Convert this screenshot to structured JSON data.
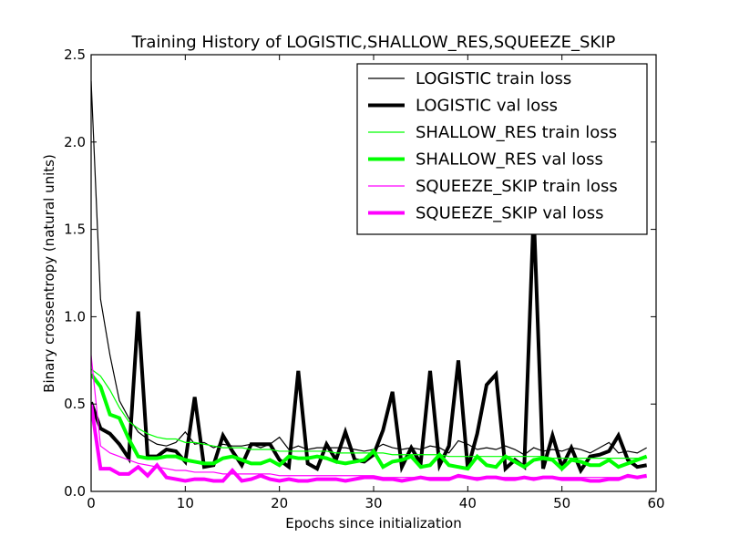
{
  "chart_data": {
    "type": "line",
    "title": "Training History of LOGISTIC,SHALLOW_RES,SQUEEZE_SKIP",
    "xlabel": "Epochs since initialization",
    "ylabel": "Binary crossentropy (natural units)",
    "xlim": [
      0,
      60
    ],
    "ylim": [
      0.0,
      2.5
    ],
    "xticks": [
      "0",
      "10",
      "20",
      "30",
      "40",
      "50",
      "60"
    ],
    "yticks": [
      "0.0",
      "0.5",
      "1.0",
      "1.5",
      "2.0",
      "2.5"
    ],
    "grid": false,
    "legend_position": "top-right",
    "x": [
      0,
      1,
      2,
      3,
      4,
      5,
      6,
      7,
      8,
      9,
      10,
      11,
      12,
      13,
      14,
      15,
      16,
      17,
      18,
      19,
      20,
      21,
      22,
      23,
      24,
      25,
      26,
      27,
      28,
      29,
      30,
      31,
      32,
      33,
      34,
      35,
      36,
      37,
      38,
      39,
      40,
      41,
      42,
      43,
      44,
      45,
      46,
      47,
      48,
      49,
      50,
      51,
      52,
      53,
      54,
      55,
      56,
      57,
      58,
      59
    ],
    "series": [
      {
        "name": "LOGISTIC train loss",
        "color": "#000000",
        "weight": "thin",
        "values": [
          2.35,
          1.1,
          0.78,
          0.52,
          0.42,
          0.34,
          0.3,
          0.27,
          0.26,
          0.28,
          0.34,
          0.27,
          0.28,
          0.25,
          0.27,
          0.26,
          0.26,
          0.27,
          0.25,
          0.27,
          0.31,
          0.24,
          0.26,
          0.24,
          0.25,
          0.25,
          0.25,
          0.25,
          0.24,
          0.23,
          0.24,
          0.27,
          0.25,
          0.24,
          0.25,
          0.24,
          0.26,
          0.25,
          0.22,
          0.29,
          0.27,
          0.24,
          0.25,
          0.24,
          0.26,
          0.24,
          0.21,
          0.25,
          0.23,
          0.24,
          0.23,
          0.25,
          0.24,
          0.22,
          0.25,
          0.28,
          0.22,
          0.23,
          0.22,
          0.25
        ]
      },
      {
        "name": "LOGISTIC val loss",
        "color": "#000000",
        "weight": "thick",
        "values": [
          0.51,
          0.36,
          0.33,
          0.27,
          0.19,
          1.03,
          0.2,
          0.2,
          0.24,
          0.23,
          0.17,
          0.54,
          0.14,
          0.15,
          0.32,
          0.23,
          0.15,
          0.27,
          0.27,
          0.27,
          0.18,
          0.14,
          0.69,
          0.16,
          0.13,
          0.27,
          0.18,
          0.34,
          0.18,
          0.17,
          0.21,
          0.35,
          0.57,
          0.14,
          0.25,
          0.16,
          0.69,
          0.15,
          0.26,
          0.75,
          0.13,
          0.33,
          0.61,
          0.67,
          0.13,
          0.18,
          0.14,
          1.6,
          0.13,
          0.32,
          0.14,
          0.25,
          0.12,
          0.2,
          0.21,
          0.23,
          0.32,
          0.18,
          0.14,
          0.15
        ]
      },
      {
        "name": "SHALLOW_RES train loss",
        "color": "#00ff00",
        "weight": "thin",
        "values": [
          0.7,
          0.66,
          0.58,
          0.48,
          0.4,
          0.36,
          0.33,
          0.31,
          0.3,
          0.3,
          0.28,
          0.28,
          0.27,
          0.26,
          0.25,
          0.25,
          0.25,
          0.24,
          0.24,
          0.24,
          0.23,
          0.23,
          0.23,
          0.23,
          0.23,
          0.23,
          0.22,
          0.22,
          0.22,
          0.22,
          0.22,
          0.22,
          0.21,
          0.21,
          0.21,
          0.21,
          0.21,
          0.21,
          0.2,
          0.2,
          0.2,
          0.2,
          0.2,
          0.2,
          0.2,
          0.2,
          0.2,
          0.2,
          0.2,
          0.19,
          0.19,
          0.19,
          0.19,
          0.19,
          0.19,
          0.19,
          0.19,
          0.19,
          0.19,
          0.19
        ]
      },
      {
        "name": "SHALLOW_RES val loss",
        "color": "#00ff00",
        "weight": "thick",
        "values": [
          0.67,
          0.6,
          0.44,
          0.42,
          0.3,
          0.2,
          0.19,
          0.19,
          0.2,
          0.2,
          0.18,
          0.17,
          0.16,
          0.16,
          0.19,
          0.2,
          0.18,
          0.16,
          0.16,
          0.18,
          0.15,
          0.2,
          0.19,
          0.19,
          0.2,
          0.19,
          0.17,
          0.16,
          0.17,
          0.18,
          0.23,
          0.14,
          0.17,
          0.18,
          0.2,
          0.14,
          0.15,
          0.21,
          0.15,
          0.14,
          0.13,
          0.2,
          0.15,
          0.14,
          0.2,
          0.17,
          0.14,
          0.18,
          0.19,
          0.18,
          0.13,
          0.18,
          0.17,
          0.15,
          0.15,
          0.18,
          0.14,
          0.16,
          0.18,
          0.2
        ]
      },
      {
        "name": "SQUEEZE_SKIP train loss",
        "color": "#ff00ff",
        "weight": "thin",
        "values": [
          0.78,
          0.26,
          0.22,
          0.2,
          0.18,
          0.16,
          0.15,
          0.14,
          0.13,
          0.12,
          0.12,
          0.11,
          0.11,
          0.11,
          0.1,
          0.1,
          0.1,
          0.1,
          0.1,
          0.1,
          0.09,
          0.09,
          0.09,
          0.09,
          0.09,
          0.09,
          0.09,
          0.09,
          0.09,
          0.09,
          0.09,
          0.08,
          0.08,
          0.08,
          0.08,
          0.08,
          0.08,
          0.08,
          0.08,
          0.08,
          0.08,
          0.08,
          0.08,
          0.08,
          0.08,
          0.08,
          0.08,
          0.08,
          0.08,
          0.08,
          0.08,
          0.08,
          0.08,
          0.08,
          0.08,
          0.08,
          0.08,
          0.08,
          0.08,
          0.08
        ]
      },
      {
        "name": "SQUEEZE_SKIP val loss",
        "color": "#ff00ff",
        "weight": "thick",
        "values": [
          0.5,
          0.13,
          0.13,
          0.1,
          0.1,
          0.14,
          0.09,
          0.15,
          0.08,
          0.07,
          0.06,
          0.07,
          0.07,
          0.06,
          0.06,
          0.12,
          0.06,
          0.07,
          0.09,
          0.07,
          0.06,
          0.07,
          0.06,
          0.06,
          0.07,
          0.07,
          0.07,
          0.06,
          0.07,
          0.08,
          0.08,
          0.07,
          0.07,
          0.06,
          0.07,
          0.08,
          0.07,
          0.07,
          0.07,
          0.09,
          0.08,
          0.07,
          0.08,
          0.08,
          0.07,
          0.07,
          0.08,
          0.07,
          0.08,
          0.08,
          0.07,
          0.07,
          0.07,
          0.06,
          0.06,
          0.07,
          0.07,
          0.09,
          0.08,
          0.09
        ]
      }
    ]
  }
}
